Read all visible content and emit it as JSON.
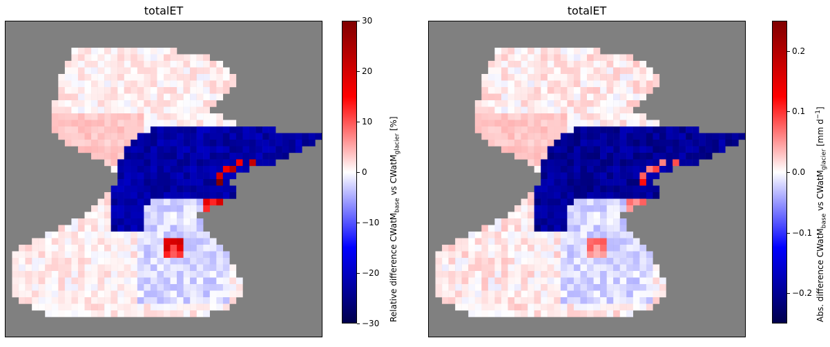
{
  "chart_data": [
    {
      "type": "heatmap",
      "title": "totalET",
      "colormap": "seismic (blue-white-red)",
      "background_color": "#808080",
      "colorbar": {
        "range": [
          -30,
          30
        ],
        "ticks": [
          30,
          20,
          10,
          0,
          -10,
          -20,
          -30
        ],
        "tick_labels": [
          "30",
          "20",
          "10",
          "0",
          "−10",
          "−20",
          "−30"
        ],
        "label": {
          "prefix": "Relative difference CWatM",
          "sub1": "base",
          "mid": " vs CWatM",
          "sub2": "glacier",
          "suffix": " [%]",
          "unit_sup": ""
        }
      },
      "regions": {
        "domain_mean": 2,
        "blue_band_value": -25,
        "hotspots_max": 30
      }
    },
    {
      "type": "heatmap",
      "title": "totalET",
      "colormap": "seismic (blue-white-red)",
      "background_color": "#808080",
      "colorbar": {
        "range": [
          -0.25,
          0.25
        ],
        "ticks": [
          0.2,
          0.1,
          0.0,
          -0.1,
          -0.2
        ],
        "tick_labels": [
          "0.2",
          "0.1",
          "0.0",
          "−0.1",
          "−0.2"
        ],
        "label": {
          "prefix": "Abs. difference CWatM",
          "sub1": "base",
          "mid": " vs CWatM",
          "sub2": "glacier",
          "suffix": " [mm d",
          "unit_sup": "−1",
          "close": "]"
        }
      },
      "regions": {
        "domain_mean": 0.02,
        "blue_band_value": -0.22,
        "hotspots_max": 0.12
      }
    }
  ]
}
